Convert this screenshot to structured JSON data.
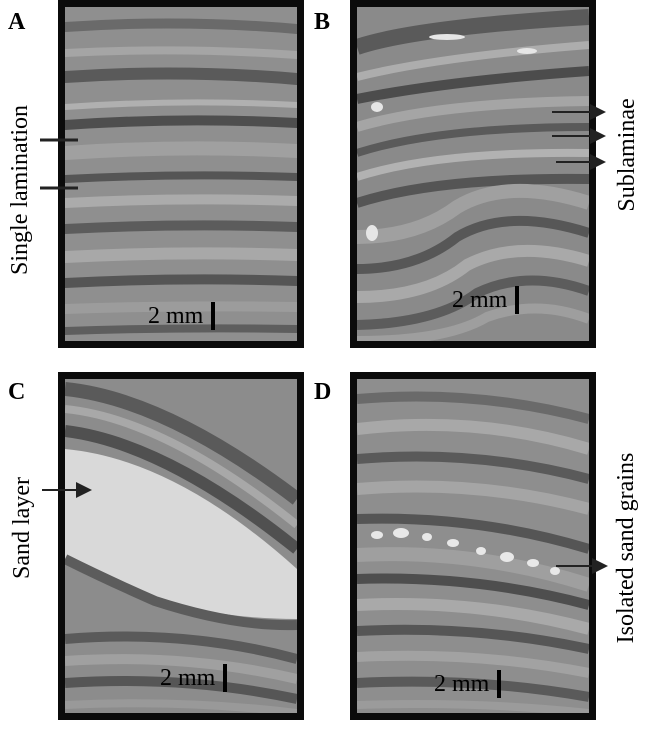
{
  "panels": {
    "A": {
      "letter": "A",
      "scale_label": "2 mm",
      "side_label": "Single lamination"
    },
    "B": {
      "letter": "B",
      "scale_label": "2 mm",
      "side_label": "Sublaminae"
    },
    "C": {
      "letter": "C",
      "scale_label": "2 mm",
      "side_label": "Sand layer"
    },
    "D": {
      "letter": "D",
      "scale_label": "2 mm",
      "side_label": "Isolated sand grains"
    }
  },
  "colors": {
    "frame": "#0b0b0b",
    "dark_band": "#555555",
    "light_band": "#a3a3a3",
    "sand": "#dcdcdc"
  }
}
